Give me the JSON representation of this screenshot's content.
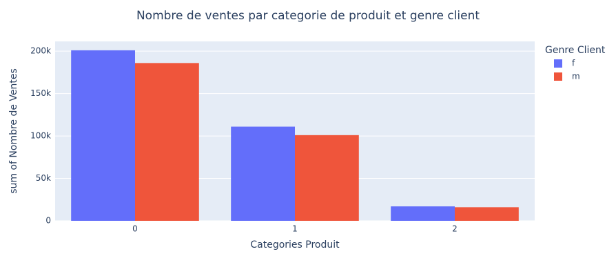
{
  "chart_data": {
    "type": "bar",
    "title": "Nombre de ventes par categorie de produit et genre client",
    "x_label": "Categories Produit",
    "y_label": "sum of Nombre de Ventes",
    "legend_title": "Genre Client",
    "categories": [
      "0",
      "1",
      "2"
    ],
    "series": [
      {
        "name": "f",
        "color": "#636efa",
        "values": [
          201000,
          111000,
          17000
        ]
      },
      {
        "name": "m",
        "color": "#ef553b",
        "values": [
          186000,
          101000,
          16000
        ]
      }
    ],
    "ylim": [
      0,
      211500
    ],
    "yticks": [
      0,
      {
        "value": 50000,
        "label": "50k"
      },
      {
        "value": 100000,
        "label": "100k"
      },
      {
        "value": 150000,
        "label": "150k"
      },
      {
        "value": 200000,
        "label": "200k"
      }
    ],
    "grid": true,
    "legend": "right"
  }
}
